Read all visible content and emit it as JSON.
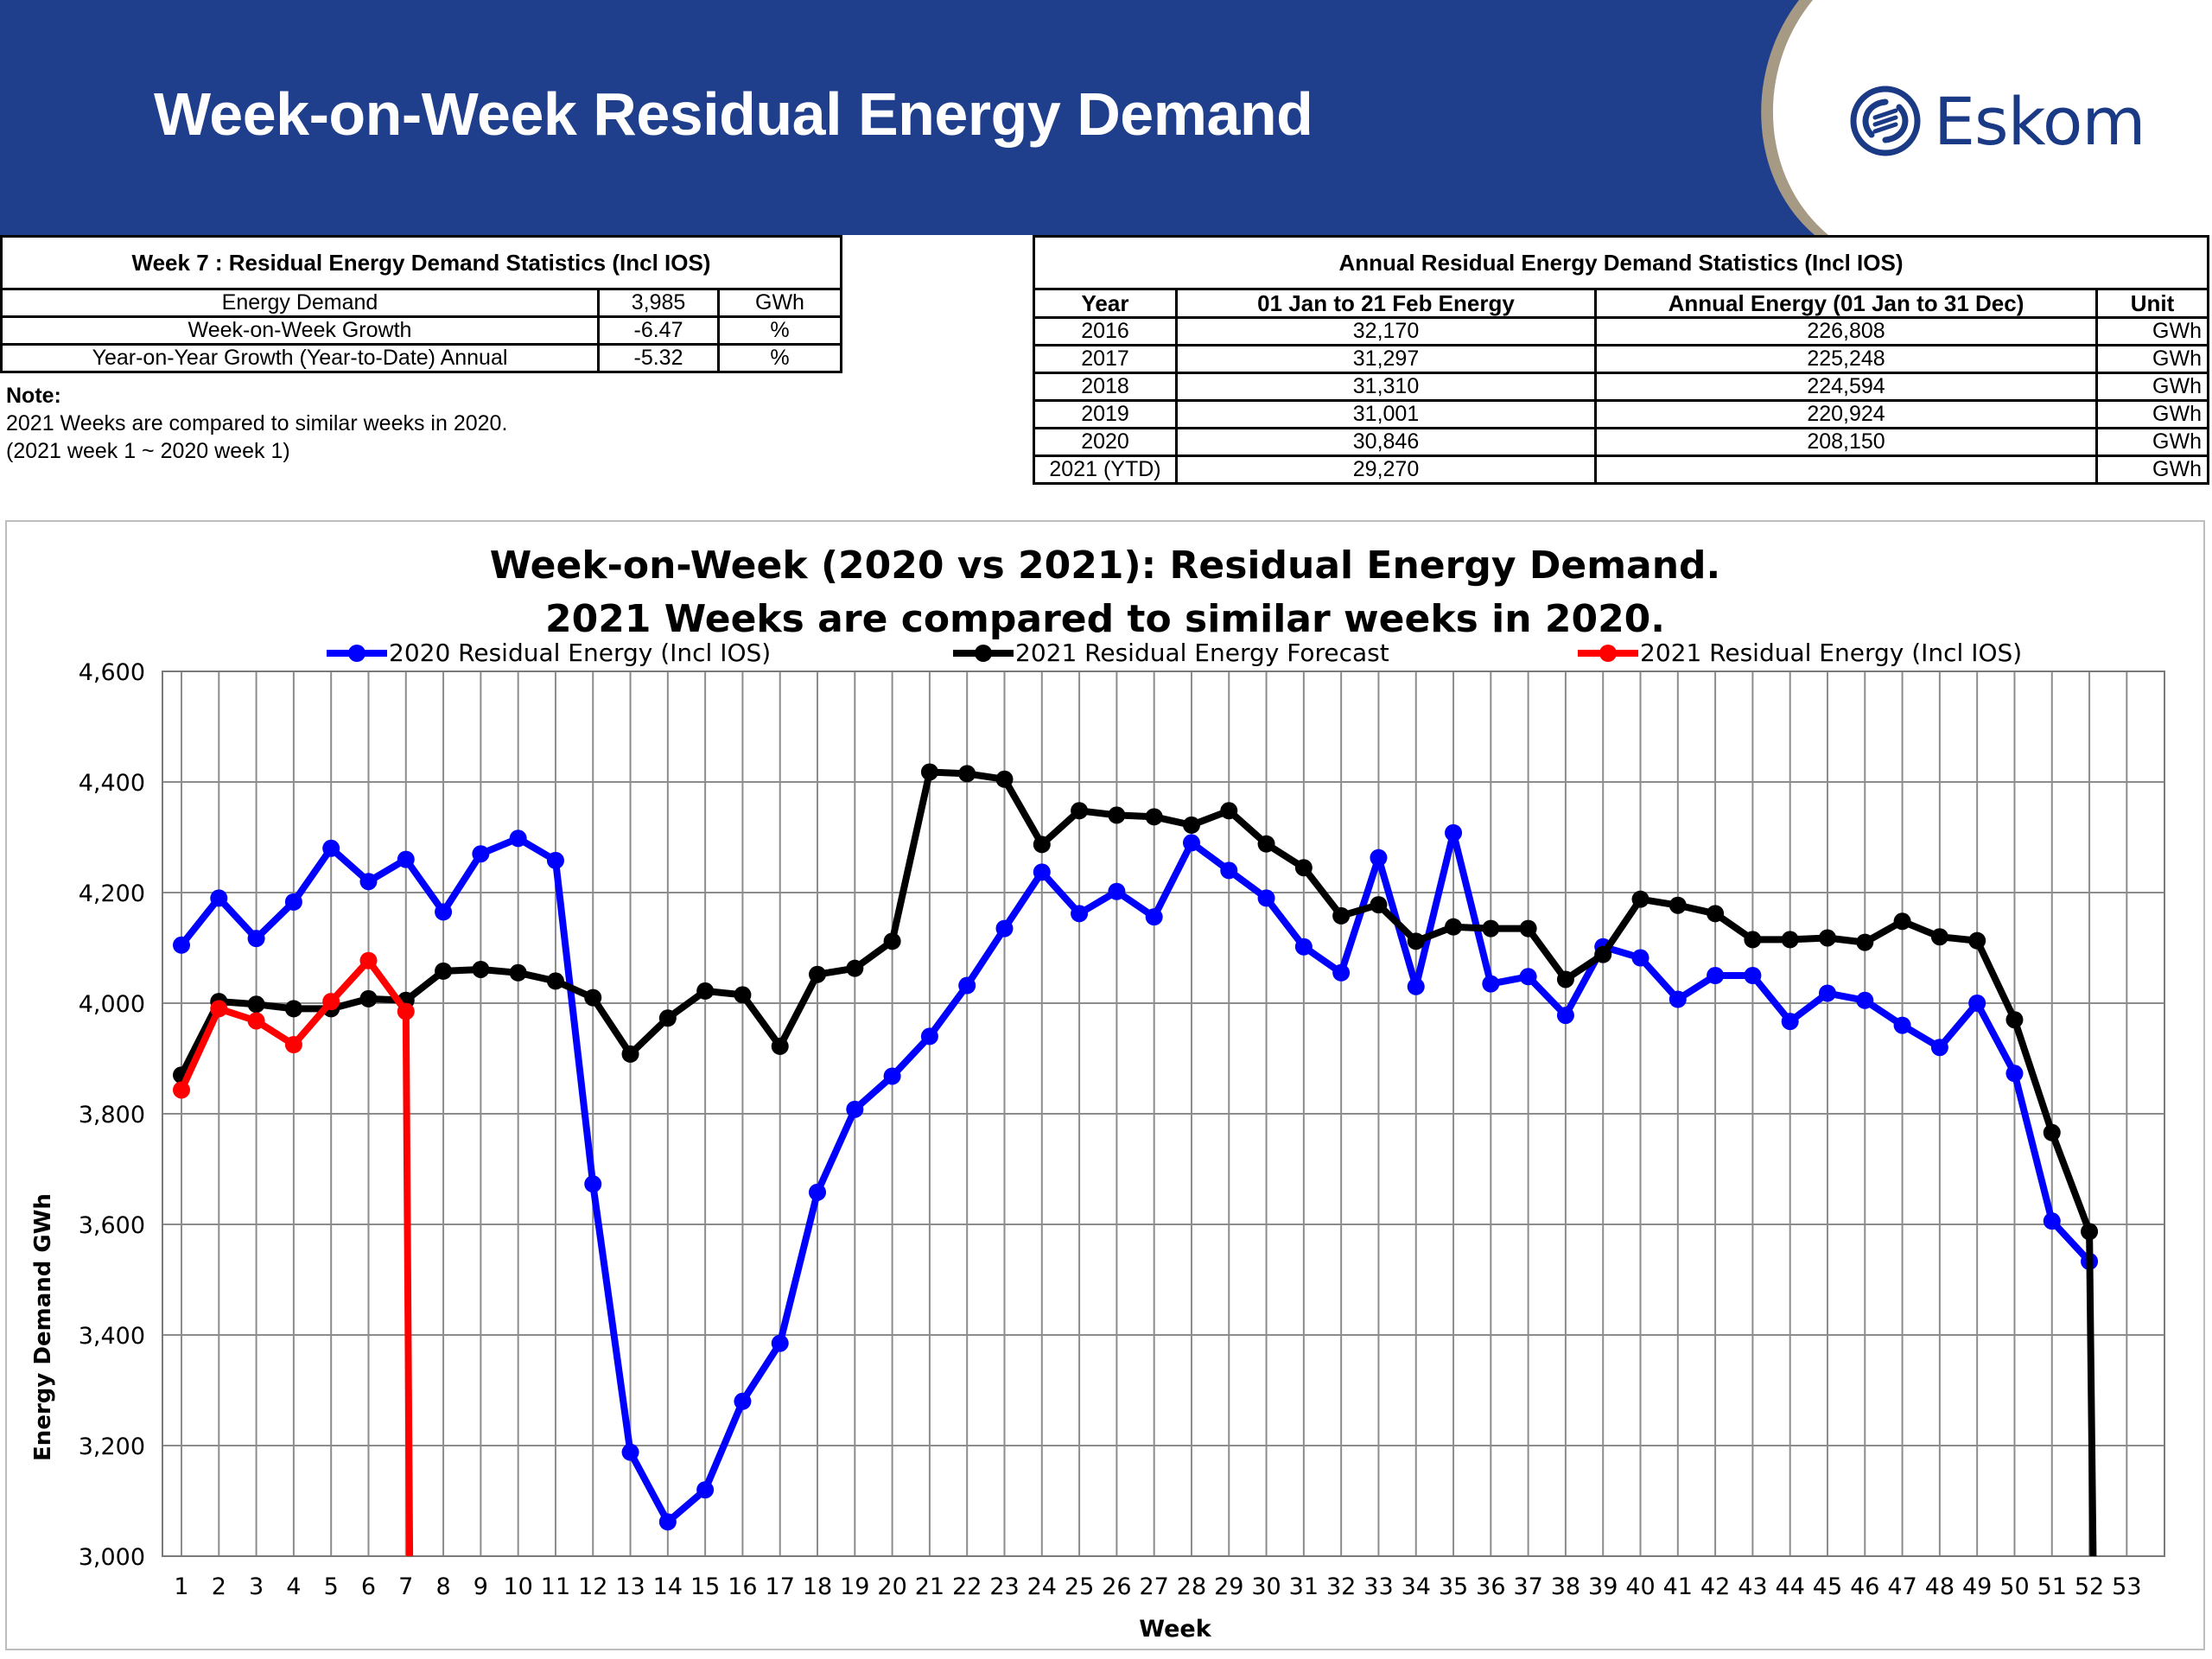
{
  "header": {
    "title": "Week-on-Week Residual Energy Demand",
    "logo_text": "Eskom",
    "colors": {
      "banner": "#1f3f8c",
      "banner_border": "#a69a85",
      "logo": "#1b3a86"
    }
  },
  "weekly_stats": {
    "caption": "Week 7 : Residual Energy Demand Statistics (Incl IOS)",
    "rows": [
      {
        "label": "Energy Demand",
        "value": "3,985",
        "unit": "GWh"
      },
      {
        "label": "Week-on-Week Growth",
        "value": "-6.47",
        "unit": "%"
      },
      {
        "label": "Year-on-Year Growth (Year-to-Date) Annual",
        "value": "-5.32",
        "unit": "%"
      }
    ]
  },
  "note": {
    "heading": "Note:",
    "line1": "2021 Weeks are compared to similar weeks in 2020.",
    "line2": "(2021 week 1 ~ 2020 week 1)"
  },
  "annual_stats": {
    "caption": "Annual Residual Energy Demand Statistics (Incl IOS)",
    "columns": [
      "Year",
      "01 Jan to 21 Feb Energy",
      "Annual Energy (01 Jan to 31 Dec)",
      "Unit"
    ],
    "rows": [
      {
        "year": "2016",
        "ytd": "32,170",
        "annual": "226,808",
        "unit": "GWh"
      },
      {
        "year": "2017",
        "ytd": "31,297",
        "annual": "225,248",
        "unit": "GWh"
      },
      {
        "year": "2018",
        "ytd": "31,310",
        "annual": "224,594",
        "unit": "GWh"
      },
      {
        "year": "2019",
        "ytd": "31,001",
        "annual": "220,924",
        "unit": "GWh"
      },
      {
        "year": "2020",
        "ytd": "30,846",
        "annual": "208,150",
        "unit": "GWh"
      },
      {
        "year": "2021 (YTD)",
        "ytd": "29,270",
        "annual": "",
        "unit": "GWh"
      }
    ]
  },
  "chart_data": {
    "type": "line",
    "title": "Week-on-Week (2020 vs 2021): Residual Energy Demand.",
    "subtitle": "2021 Weeks are compared to similar weeks in 2020.",
    "xlabel": "Week",
    "ylabel": "Energy Demand GWh",
    "x": [
      1,
      2,
      3,
      4,
      5,
      6,
      7,
      8,
      9,
      10,
      11,
      12,
      13,
      14,
      15,
      16,
      17,
      18,
      19,
      20,
      21,
      22,
      23,
      24,
      25,
      26,
      27,
      28,
      29,
      30,
      31,
      32,
      33,
      34,
      35,
      36,
      37,
      38,
      39,
      40,
      41,
      42,
      43,
      44,
      45,
      46,
      47,
      48,
      49,
      50,
      51,
      52,
      53
    ],
    "xlim": [
      1,
      53
    ],
    "ylim": [
      3000,
      4600
    ],
    "yticks": [
      3000,
      3200,
      3400,
      3600,
      3800,
      4000,
      4200,
      4400,
      4600
    ],
    "ytick_labels": [
      "3,000",
      "3,200",
      "3,400",
      "3,600",
      "3,800",
      "4,000",
      "4,200",
      "4,400",
      "4,600"
    ],
    "grid": true,
    "legend_position": "top",
    "series": [
      {
        "name": "2020 Residual Energy (Incl IOS)",
        "color": "#0000ff",
        "x": [
          1,
          2,
          3,
          4,
          5,
          6,
          7,
          8,
          9,
          10,
          11,
          12,
          13,
          14,
          15,
          16,
          17,
          18,
          19,
          20,
          21,
          22,
          23,
          24,
          25,
          26,
          27,
          28,
          29,
          30,
          31,
          32,
          33,
          34,
          35,
          36,
          37,
          38,
          39,
          40,
          41,
          42,
          43,
          44,
          45,
          46,
          47,
          48,
          49,
          50,
          51,
          52
        ],
        "values": [
          4105,
          4190,
          4117,
          4183,
          4280,
          4220,
          4260,
          4165,
          4270,
          4298,
          4258,
          3673,
          3188,
          3062,
          3120,
          3280,
          3385,
          3658,
          3808,
          3868,
          3940,
          4032,
          4135,
          4237,
          4162,
          4202,
          4156,
          4290,
          4240,
          4190,
          4102,
          4055,
          4263,
          4030,
          4308,
          4035,
          4048,
          3978,
          4102,
          4082,
          4007,
          4050,
          4050,
          3967,
          4018,
          4005,
          3960,
          3920,
          4000,
          3873,
          3606,
          3533
        ]
      },
      {
        "name": "2021 Residual Energy Forecast",
        "color": "#000000",
        "x": [
          1,
          2,
          3,
          4,
          5,
          6,
          7,
          8,
          9,
          10,
          11,
          12,
          13,
          14,
          15,
          16,
          17,
          18,
          19,
          20,
          21,
          22,
          23,
          24,
          25,
          26,
          27,
          28,
          29,
          30,
          31,
          32,
          33,
          34,
          35,
          36,
          37,
          38,
          39,
          40,
          41,
          42,
          43,
          44,
          45,
          46,
          47,
          48,
          49,
          50,
          51,
          52,
          52.1
        ],
        "values": [
          3870,
          4003,
          3998,
          3990,
          3990,
          4008,
          4005,
          4058,
          4061,
          4055,
          4040,
          4010,
          3908,
          3973,
          4022,
          4015,
          3922,
          4052,
          4063,
          4112,
          4418,
          4415,
          4405,
          4287,
          4348,
          4340,
          4337,
          4322,
          4348,
          4288,
          4245,
          4158,
          4178,
          4112,
          4138,
          4135,
          4135,
          4043,
          4088,
          4188,
          4177,
          4162,
          4115,
          4115,
          4118,
          4110,
          4148,
          4120,
          4113,
          3970,
          3766,
          3587,
          3000
        ]
      },
      {
        "name": "2021 Residual Energy (Incl IOS)",
        "color": "#ff0000",
        "x": [
          1,
          2,
          3,
          4,
          5,
          6,
          7,
          7.1
        ],
        "values": [
          3843,
          3990,
          3968,
          3925,
          4003,
          4077,
          3985,
          3000
        ]
      }
    ]
  }
}
